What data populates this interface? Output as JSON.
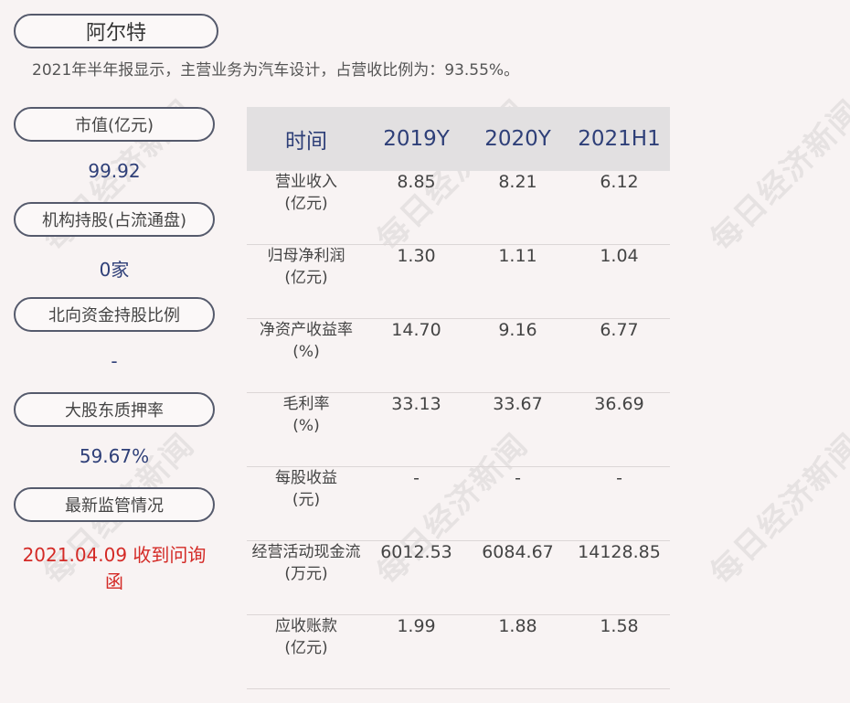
{
  "title": "阿尔特",
  "subtitle": "2021年半年报显示，主营业务为汽车设计，占营收比例为：93.55%。",
  "metrics": [
    {
      "label": "市值(亿元)",
      "value": "99.92"
    },
    {
      "label": "机构持股(占流通盘)",
      "value": "0家"
    },
    {
      "label": "北向资金持股比例",
      "value": "-"
    },
    {
      "label": "大股东质押率",
      "value": "59.67%"
    },
    {
      "label": "最新监管情况",
      "value": "2021.04.09 收到问询函"
    }
  ],
  "table": {
    "headers": [
      "时间",
      "2019Y",
      "2020Y",
      "2021H1"
    ],
    "rows": [
      {
        "label1": "营业收入",
        "label2": "(亿元)",
        "values": [
          "8.85",
          "8.21",
          "6.12"
        ]
      },
      {
        "label1": "归母净利润",
        "label2": "(亿元)",
        "values": [
          "1.30",
          "1.11",
          "1.04"
        ]
      },
      {
        "label1": "净资产收益率",
        "label2": "(%)",
        "values": [
          "14.70",
          "9.16",
          "6.77"
        ]
      },
      {
        "label1": "毛利率",
        "label2": "(%)",
        "values": [
          "33.13",
          "33.67",
          "36.69"
        ]
      },
      {
        "label1": "每股收益",
        "label2": "(元)",
        "values": [
          "-",
          "-",
          "-"
        ]
      },
      {
        "label1": "经营活动现金流",
        "label2": "(万元)",
        "values": [
          "6012.53",
          "6084.67",
          "14128.85"
        ]
      },
      {
        "label1": "应收账款",
        "label2": "(亿元)",
        "values": [
          "1.99",
          "1.88",
          "1.58"
        ]
      }
    ]
  },
  "watermark": "每日经济新闻",
  "colors": {
    "accent": "#2e3f78",
    "alert": "#d42a26",
    "header_bg": "#e2e0e1",
    "background": "#f8f3f3"
  }
}
